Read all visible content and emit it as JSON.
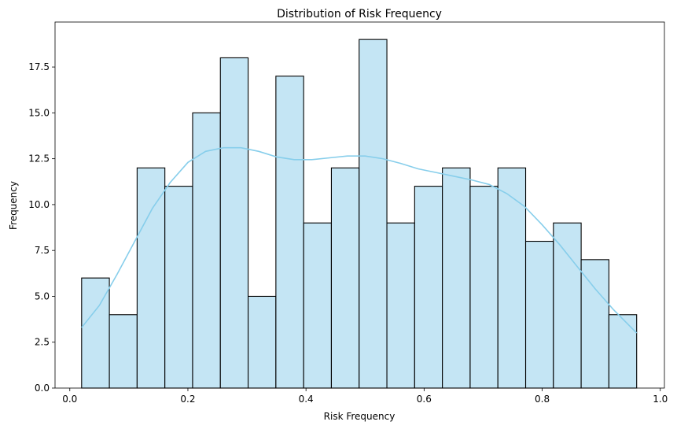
{
  "chart_data": {
    "type": "bar",
    "subtype": "histogram-with-kde",
    "title": "Distribution of Risk Frequency",
    "xlabel": "Risk Frequency",
    "ylabel": "Frequency",
    "xlim": [
      -0.025,
      1.007
    ],
    "ylim": [
      0,
      19.95
    ],
    "x_ticks": [
      0.0,
      0.2,
      0.4,
      0.6,
      0.8,
      1.0
    ],
    "x_tick_labels": [
      "0.0",
      "0.2",
      "0.4",
      "0.6",
      "0.8",
      "1.0"
    ],
    "y_ticks": [
      0.0,
      2.5,
      5.0,
      7.5,
      10.0,
      12.5,
      15.0,
      17.5
    ],
    "y_tick_labels": [
      "0.0",
      "2.5",
      "5.0",
      "7.5",
      "10.0",
      "12.5",
      "15.0",
      "17.5"
    ],
    "bin_edges": [
      0.02,
      0.067,
      0.114,
      0.161,
      0.208,
      0.255,
      0.302,
      0.349,
      0.396,
      0.443,
      0.49,
      0.537,
      0.584,
      0.631,
      0.678,
      0.725,
      0.772,
      0.819,
      0.866,
      0.913,
      0.96
    ],
    "values": [
      6,
      4,
      12,
      11,
      15,
      18,
      5,
      17,
      9,
      12,
      19,
      9,
      11,
      12,
      11,
      12,
      8,
      9,
      7,
      4
    ],
    "kde": {
      "x": [
        0.02,
        0.05,
        0.08,
        0.11,
        0.14,
        0.17,
        0.2,
        0.23,
        0.26,
        0.29,
        0.32,
        0.35,
        0.38,
        0.41,
        0.44,
        0.47,
        0.5,
        0.53,
        0.56,
        0.59,
        0.62,
        0.65,
        0.68,
        0.71,
        0.74,
        0.77,
        0.8,
        0.83,
        0.86,
        0.89,
        0.92,
        0.96
      ],
      "y": [
        3.3,
        4.5,
        6.2,
        8.0,
        9.8,
        11.2,
        12.3,
        12.9,
        13.1,
        13.1,
        12.9,
        12.6,
        12.45,
        12.45,
        12.55,
        12.65,
        12.65,
        12.5,
        12.25,
        11.95,
        11.75,
        11.55,
        11.35,
        11.1,
        10.6,
        9.9,
        8.9,
        7.8,
        6.6,
        5.4,
        4.3,
        3.0
      ]
    },
    "colors": {
      "bar_fill": "#c4e5f4",
      "bar_edge": "#000000",
      "kde_line": "#87ceeb"
    },
    "grid": false,
    "legend": "none"
  }
}
